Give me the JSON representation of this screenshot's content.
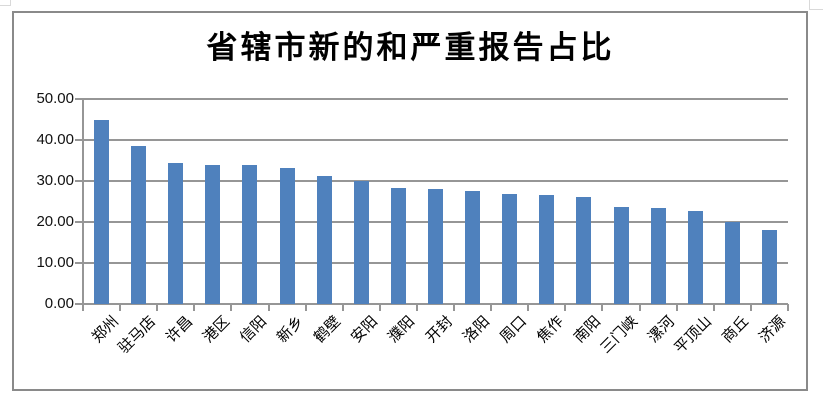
{
  "chart_data": {
    "type": "bar",
    "title": "省辖市新的和严重报告占比",
    "categories": [
      "郑州",
      "驻马店",
      "许昌",
      "港区",
      "信阳",
      "新乡",
      "鹤壁",
      "安阳",
      "濮阳",
      "开封",
      "洛阳",
      "周口",
      "焦作",
      "南阳",
      "三门峡",
      "漯河",
      "平顶山",
      "商丘",
      "济源"
    ],
    "values": [
      45.0,
      38.5,
      34.4,
      34.0,
      33.8,
      33.1,
      31.2,
      30.0,
      28.2,
      28.0,
      27.5,
      26.8,
      26.5,
      26.0,
      23.6,
      23.3,
      22.7,
      19.9,
      18.1
    ],
    "xlabel": "",
    "ylabel": "",
    "ylim": [
      0,
      50
    ],
    "yticks": [
      0,
      10,
      20,
      30,
      40,
      50
    ],
    "ytick_labels": [
      "0.00",
      "10.00",
      "20.00",
      "30.00",
      "40.00",
      "50.00"
    ],
    "grid": "horizontal",
    "legend": "none",
    "sort_order": "descending"
  },
  "colors": {
    "bar": "#4f81bd",
    "gridline": "#969696",
    "chart_border": "#8a8a8a",
    "title_text": "#000000",
    "axis_text": "#111111",
    "background": "#ffffff",
    "spreadsheet_cell_line": "#d9d9d9"
  }
}
